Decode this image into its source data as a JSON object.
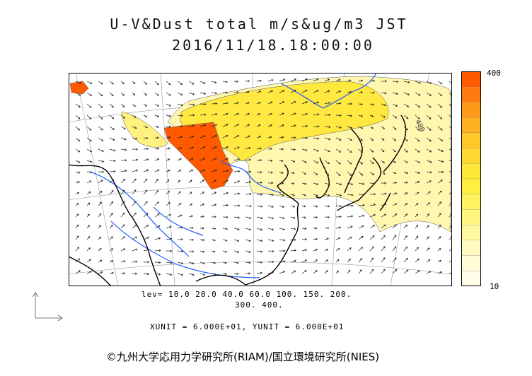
{
  "header": {
    "title": "U-V&Dust total m/s&ug/m3 JST",
    "datetime": "2016/11/18.18:00:00"
  },
  "colorbar": {
    "max_label": "400",
    "min_label": "10",
    "colors": [
      "#ff5a00",
      "#ff7a10",
      "#ff9a18",
      "#ffb020",
      "#ffc828",
      "#ffd830",
      "#ffe838",
      "#fff040",
      "#fff460",
      "#fff680",
      "#fff8a0",
      "#fffac0",
      "#fffcd8",
      "#fffee8"
    ]
  },
  "legend": {
    "lev_line1": "lev= 10.0 20.0 40.0 60.0 100. 150. 200.",
    "lev_line2": "300. 400."
  },
  "units_text": "XUNIT = 6.000E+01, YUNIT = 6.000E+01",
  "credit": "©九州大学応用力学研究所(RIAM)/国立環境研究所(NIES)",
  "map_annotation": "400",
  "colors": {
    "coast": "#000000",
    "river": "#1e5bff",
    "dust_high": "#ff5a00",
    "dust_mid": "#ffe840",
    "dust_low": "#fff6b0"
  }
}
